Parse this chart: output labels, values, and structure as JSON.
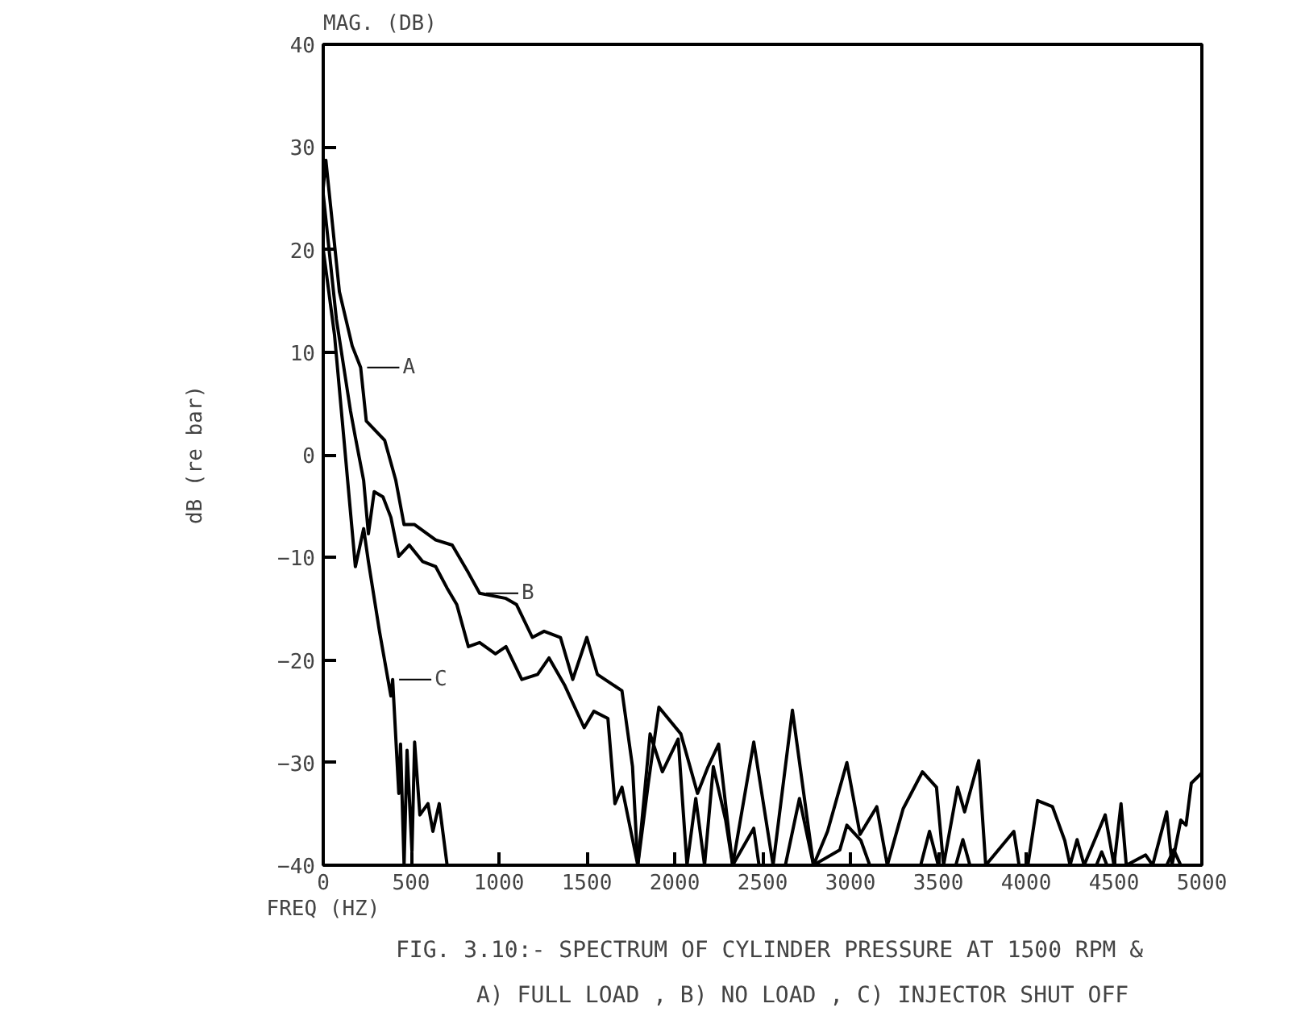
{
  "chart_data": {
    "type": "line",
    "title": "MAG. (DB)",
    "xlabel": "FREQ (HZ)",
    "ylabel": "dB (re bar)",
    "xlim": [
      0,
      5000
    ],
    "ylim": [
      -40,
      40
    ],
    "xticks": [
      0,
      500,
      1000,
      1500,
      2000,
      2500,
      3000,
      3500,
      4000,
      4500,
      5000
    ],
    "yticks": [
      -40,
      -30,
      -20,
      -10,
      0,
      10,
      20,
      30,
      40
    ],
    "grid": false,
    "marker": "none",
    "line_style": "solid",
    "series": [
      {
        "color": "#000000",
        "x": [
          0,
          15,
          92,
          165,
          213,
          245,
          350,
          413,
          460,
          520,
          640,
          734,
          826,
          890,
          1040,
          1100,
          1190,
          1257,
          1350,
          1420,
          1500,
          1560,
          1700,
          1760,
          1790,
          1850,
          1910,
          2035,
          2130,
          2190,
          2250,
          2330,
          2450,
          2560,
          2670,
          2790,
          2870,
          2980,
          3055,
          3150,
          3210,
          3300,
          3410,
          3490,
          3530,
          3610,
          3650,
          3730,
          3770,
          3930,
          3960,
          4010,
          4065,
          4150,
          4220,
          4250,
          4290,
          4330,
          4450,
          4500,
          4540,
          4570,
          4680,
          4720,
          4800,
          4830,
          4880,
          4910,
          4940,
          5000
        ],
        "values": [
          26,
          28.7,
          15.9,
          10.6,
          8.5,
          3.3,
          1.4,
          -2.5,
          -6.8,
          -6.8,
          -8.3,
          -8.8,
          -11.5,
          -13.5,
          -14,
          -14.6,
          -17.8,
          -17.2,
          -17.8,
          -21.9,
          -17.8,
          -21.4,
          -23,
          -30.4,
          -40,
          -32,
          -24.6,
          -27.2,
          -33,
          -30.4,
          -28.2,
          -40,
          -28,
          -40,
          -24.9,
          -40,
          -36.7,
          -30,
          -37,
          -34.3,
          -40,
          -34.5,
          -30.9,
          -32.4,
          -40,
          -32.4,
          -34.8,
          -29.8,
          -40,
          -36.7,
          -40,
          -40,
          -33.7,
          -34.3,
          -37.6,
          -40,
          -37.5,
          -40,
          -35.1,
          -40,
          -34,
          -40,
          -39,
          -40,
          -34.8,
          -40,
          -35.6,
          -36.1,
          -32,
          -31
        ]
      },
      {
        "color": "#000000",
        "x": [
          0,
          75,
          155,
          183,
          230,
          257,
          290,
          340,
          385,
          430,
          490,
          565,
          640,
          705,
          760,
          826,
          890,
          980,
          1040,
          1130,
          1220,
          1285,
          1375,
          1485,
          1540,
          1620,
          1660,
          1700,
          1790,
          1860,
          1930,
          2020,
          2070,
          2120,
          2170,
          2220,
          2290,
          2330,
          2450,
          2480,
          2630,
          2710,
          2790,
          2940,
          2980,
          3060,
          3110,
          3400,
          3450,
          3500,
          3600,
          3640,
          3680,
          4400,
          4430,
          4460,
          4800,
          4840,
          4880,
          5000
        ],
        "values": [
          25.4,
          13.2,
          4.3,
          1.7,
          -2.5,
          -7.7,
          -3.6,
          -4.1,
          -6.1,
          -9.9,
          -8.8,
          -10.4,
          -10.9,
          -13,
          -14.6,
          -18.7,
          -18.3,
          -19.4,
          -18.7,
          -21.9,
          -21.4,
          -19.8,
          -22.5,
          -26.6,
          -25,
          -25.7,
          -34,
          -32.4,
          -40,
          -27.2,
          -30.9,
          -27.7,
          -40,
          -33.5,
          -40,
          -30.4,
          -35.6,
          -40,
          -36.4,
          -40,
          -40,
          -33.5,
          -40,
          -38.5,
          -36.1,
          -37.6,
          -40,
          -40,
          -36.7,
          -40,
          -40,
          -37.5,
          -40,
          -40,
          -38.7,
          -40,
          -40,
          -38.5,
          -40,
          -40
        ]
      },
      {
        "color": "#000000",
        "x": [
          0,
          64,
          120,
          183,
          230,
          257,
          320,
          385,
          395,
          430,
          440,
          460,
          477,
          505,
          520,
          550,
          596,
          624,
          660,
          705
        ],
        "values": [
          20,
          11.7,
          1.1,
          -10.9,
          -7.2,
          -10.4,
          -17.2,
          -23.5,
          -21.9,
          -33,
          -28.2,
          -40,
          -28.8,
          -38.7,
          -28,
          -35.1,
          -34,
          -36.7,
          -34,
          -40
        ]
      }
    ],
    "annotations": [
      {
        "text": "A",
        "x": 213,
        "y": 8.5
      },
      {
        "text": "B",
        "x": 890,
        "y": -13.5
      },
      {
        "text": "C",
        "x": 395,
        "y": -21.9
      },
      "FIG. 3.10:- SPECTRUM OF CYLINDER PRESSURE AT 1500 RPM &",
      "A) FULL LOAD , B) NO LOAD , C) INJECTOR SHUT OFF"
    ]
  }
}
